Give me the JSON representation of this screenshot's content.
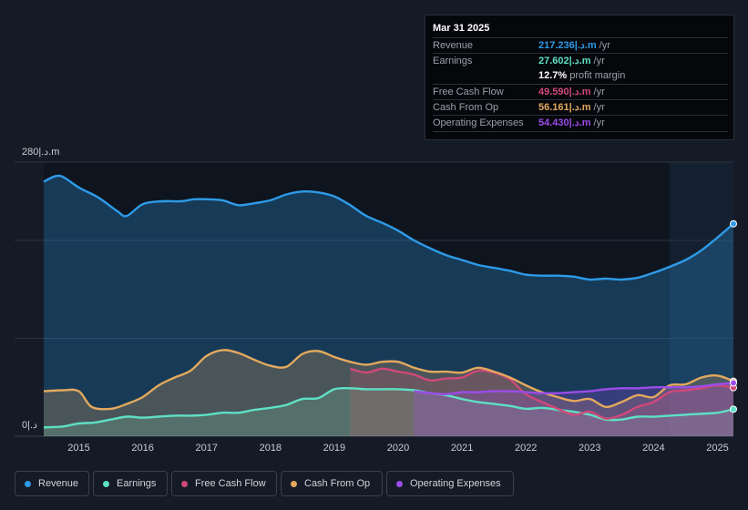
{
  "tooltip": {
    "date": "Mar 31 2025",
    "rows": [
      {
        "label": "Revenue",
        "value": "217.236|.د.m",
        "unit": "/yr",
        "color": "#2e9be8"
      },
      {
        "label": "Earnings",
        "value": "27.602|.د.m",
        "unit": "/yr",
        "color": "#5ee0c5"
      },
      {
        "label": "",
        "value": "12.7%",
        "unit": "profit margin",
        "color": "#ffffff"
      },
      {
        "label": "Free Cash Flow",
        "value": "49.590|.د.m",
        "unit": "/yr",
        "color": "#d0487a"
      },
      {
        "label": "Cash From Op",
        "value": "56.161|.د.m",
        "unit": "/yr",
        "color": "#e3a95e"
      },
      {
        "label": "Operating Expenses",
        "value": "54.430|.د.m",
        "unit": "/yr",
        "color": "#9b4de8"
      }
    ]
  },
  "legend": [
    {
      "label": "Revenue",
      "color": "#2e9be8"
    },
    {
      "label": "Earnings",
      "color": "#5ee0c5"
    },
    {
      "label": "Free Cash Flow",
      "color": "#d0487a"
    },
    {
      "label": "Cash From Op",
      "color": "#e3a95e"
    },
    {
      "label": "Operating Expenses",
      "color": "#9b4de8"
    }
  ],
  "chart_data": {
    "type": "area",
    "y_top_label": "280|.د.m",
    "y_bottom_label": "0|.د",
    "ylim": [
      0,
      280
    ],
    "xlim": [
      2014.45,
      2025.25
    ],
    "x_ticks": [
      "2015",
      "2016",
      "2017",
      "2018",
      "2019",
      "2020",
      "2021",
      "2022",
      "2023",
      "2024",
      "2025"
    ],
    "forecast_start": 2024.25,
    "series": [
      {
        "name": "Revenue",
        "color": "#2e9be8",
        "x": [
          2014.45,
          2014.7,
          2015.0,
          2015.3,
          2015.6,
          2015.75,
          2016.0,
          2016.3,
          2016.6,
          2016.8,
          2017.0,
          2017.25,
          2017.5,
          2017.75,
          2018.0,
          2018.25,
          2018.5,
          2018.75,
          2019.0,
          2019.25,
          2019.5,
          2019.75,
          2020.0,
          2020.25,
          2020.5,
          2020.75,
          2021.0,
          2021.25,
          2021.5,
          2021.75,
          2022.0,
          2022.25,
          2022.5,
          2022.75,
          2023.0,
          2023.25,
          2023.5,
          2023.75,
          2024.0,
          2024.25,
          2024.5,
          2024.75,
          2025.0,
          2025.25
        ],
        "values": [
          260,
          266,
          254,
          244,
          230,
          225,
          237,
          240,
          240,
          242,
          242,
          241,
          236,
          238,
          241,
          247,
          250,
          249,
          245,
          236,
          225,
          218,
          210,
          200,
          192,
          185,
          180,
          175,
          172,
          169,
          165,
          164,
          164,
          163,
          160,
          161,
          160,
          162,
          167,
          173,
          180,
          190,
          203,
          217
        ]
      },
      {
        "name": "Earnings",
        "color": "#5ee0c5",
        "x": [
          2014.45,
          2014.75,
          2015.0,
          2015.25,
          2015.5,
          2015.75,
          2016.0,
          2016.25,
          2016.5,
          2016.75,
          2017.0,
          2017.25,
          2017.5,
          2017.75,
          2018.0,
          2018.25,
          2018.5,
          2018.75,
          2019.0,
          2019.25,
          2019.5,
          2019.75,
          2020.0,
          2020.25,
          2020.5,
          2020.75,
          2021.0,
          2021.25,
          2021.5,
          2021.75,
          2022.0,
          2022.25,
          2022.5,
          2022.75,
          2023.0,
          2023.25,
          2023.5,
          2023.75,
          2024.0,
          2024.25,
          2024.5,
          2024.75,
          2025.0,
          2025.25
        ],
        "values": [
          9,
          10,
          13,
          14,
          17,
          20,
          19,
          20,
          21,
          21,
          22,
          24,
          24,
          27,
          29,
          32,
          38,
          39,
          48,
          49,
          48,
          48,
          48,
          47,
          44,
          42,
          38,
          35,
          33,
          31,
          28,
          29,
          27,
          25,
          22,
          17,
          17,
          20,
          20,
          21,
          22,
          23,
          24,
          27.6
        ]
      },
      {
        "name": "Free Cash Flow",
        "color": "#d0487a",
        "x": [
          2019.25,
          2019.5,
          2019.75,
          2020.0,
          2020.25,
          2020.5,
          2020.75,
          2021.0,
          2021.25,
          2021.5,
          2021.75,
          2022.0,
          2022.25,
          2022.5,
          2022.75,
          2023.0,
          2023.25,
          2023.5,
          2023.75,
          2024.0,
          2024.25,
          2024.5,
          2024.75,
          2025.0,
          2025.25
        ],
        "values": [
          69,
          65,
          69,
          66,
          63,
          57,
          59,
          60,
          67,
          65,
          58,
          43,
          35,
          28,
          22,
          25,
          18,
          22,
          30,
          35,
          45,
          47,
          49,
          52,
          49.6
        ]
      },
      {
        "name": "Cash From Op",
        "color": "#e3a95e",
        "x": [
          2014.45,
          2014.75,
          2015.0,
          2015.2,
          2015.5,
          2015.75,
          2016.0,
          2016.25,
          2016.5,
          2016.75,
          2017.0,
          2017.25,
          2017.5,
          2017.75,
          2018.0,
          2018.25,
          2018.5,
          2018.75,
          2019.0,
          2019.25,
          2019.5,
          2019.75,
          2020.0,
          2020.25,
          2020.5,
          2020.75,
          2021.0,
          2021.25,
          2021.5,
          2021.75,
          2022.0,
          2022.25,
          2022.5,
          2022.75,
          2023.0,
          2023.25,
          2023.5,
          2023.75,
          2024.0,
          2024.25,
          2024.5,
          2024.75,
          2025.0,
          2025.25
        ],
        "values": [
          46,
          47,
          46,
          30,
          28,
          33,
          40,
          52,
          60,
          67,
          82,
          88,
          85,
          78,
          72,
          71,
          84,
          87,
          81,
          76,
          73,
          76,
          76,
          70,
          66,
          66,
          65,
          70,
          66,
          60,
          52,
          45,
          40,
          36,
          38,
          30,
          35,
          42,
          40,
          52,
          53,
          60,
          62,
          56.2
        ]
      },
      {
        "name": "Operating Expenses",
        "color": "#9b4de8",
        "x": [
          2020.25,
          2020.5,
          2020.75,
          2021.0,
          2021.25,
          2021.5,
          2021.75,
          2022.0,
          2022.25,
          2022.5,
          2022.75,
          2023.0,
          2023.25,
          2023.5,
          2023.75,
          2024.0,
          2024.25,
          2024.5,
          2024.75,
          2025.0,
          2025.25
        ],
        "values": [
          46,
          44,
          43,
          45,
          45,
          46,
          46,
          45,
          44,
          44,
          45,
          46,
          48,
          49,
          49,
          50,
          50,
          50,
          51,
          53,
          54.4
        ]
      }
    ]
  }
}
